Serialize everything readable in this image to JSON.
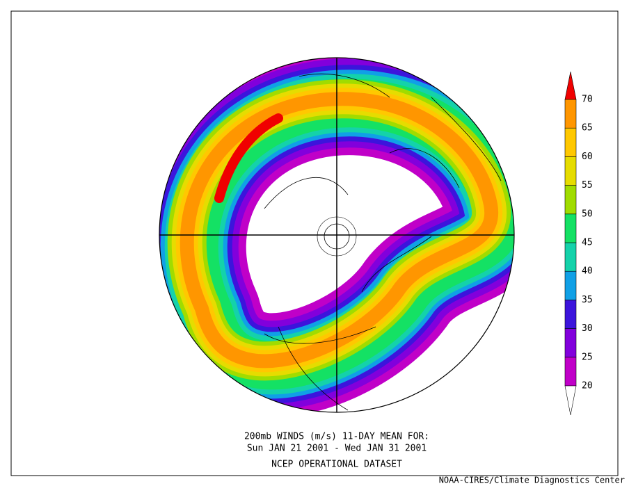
{
  "caption": {
    "line1": "200mb WINDS (m/s)   11-DAY MEAN FOR:",
    "line2": "Sun JAN 21 2001 - Wed JAN 31 2001",
    "line3": "NCEP OPERATIONAL DATASET"
  },
  "credit": "NOAA-CIRES/Climate Diagnostics Center",
  "colorbar": {
    "levels": [
      20,
      25,
      30,
      35,
      40,
      45,
      50,
      55,
      60,
      65,
      70
    ],
    "colors": [
      "#c000c8",
      "#8200dc",
      "#3c14dc",
      "#10a0e6",
      "#14d2aa",
      "#14e164",
      "#a0dc00",
      "#e6dc00",
      "#ffc800",
      "#ff9600"
    ],
    "over_color": "#f00000",
    "under_color": "#ffffff"
  }
}
